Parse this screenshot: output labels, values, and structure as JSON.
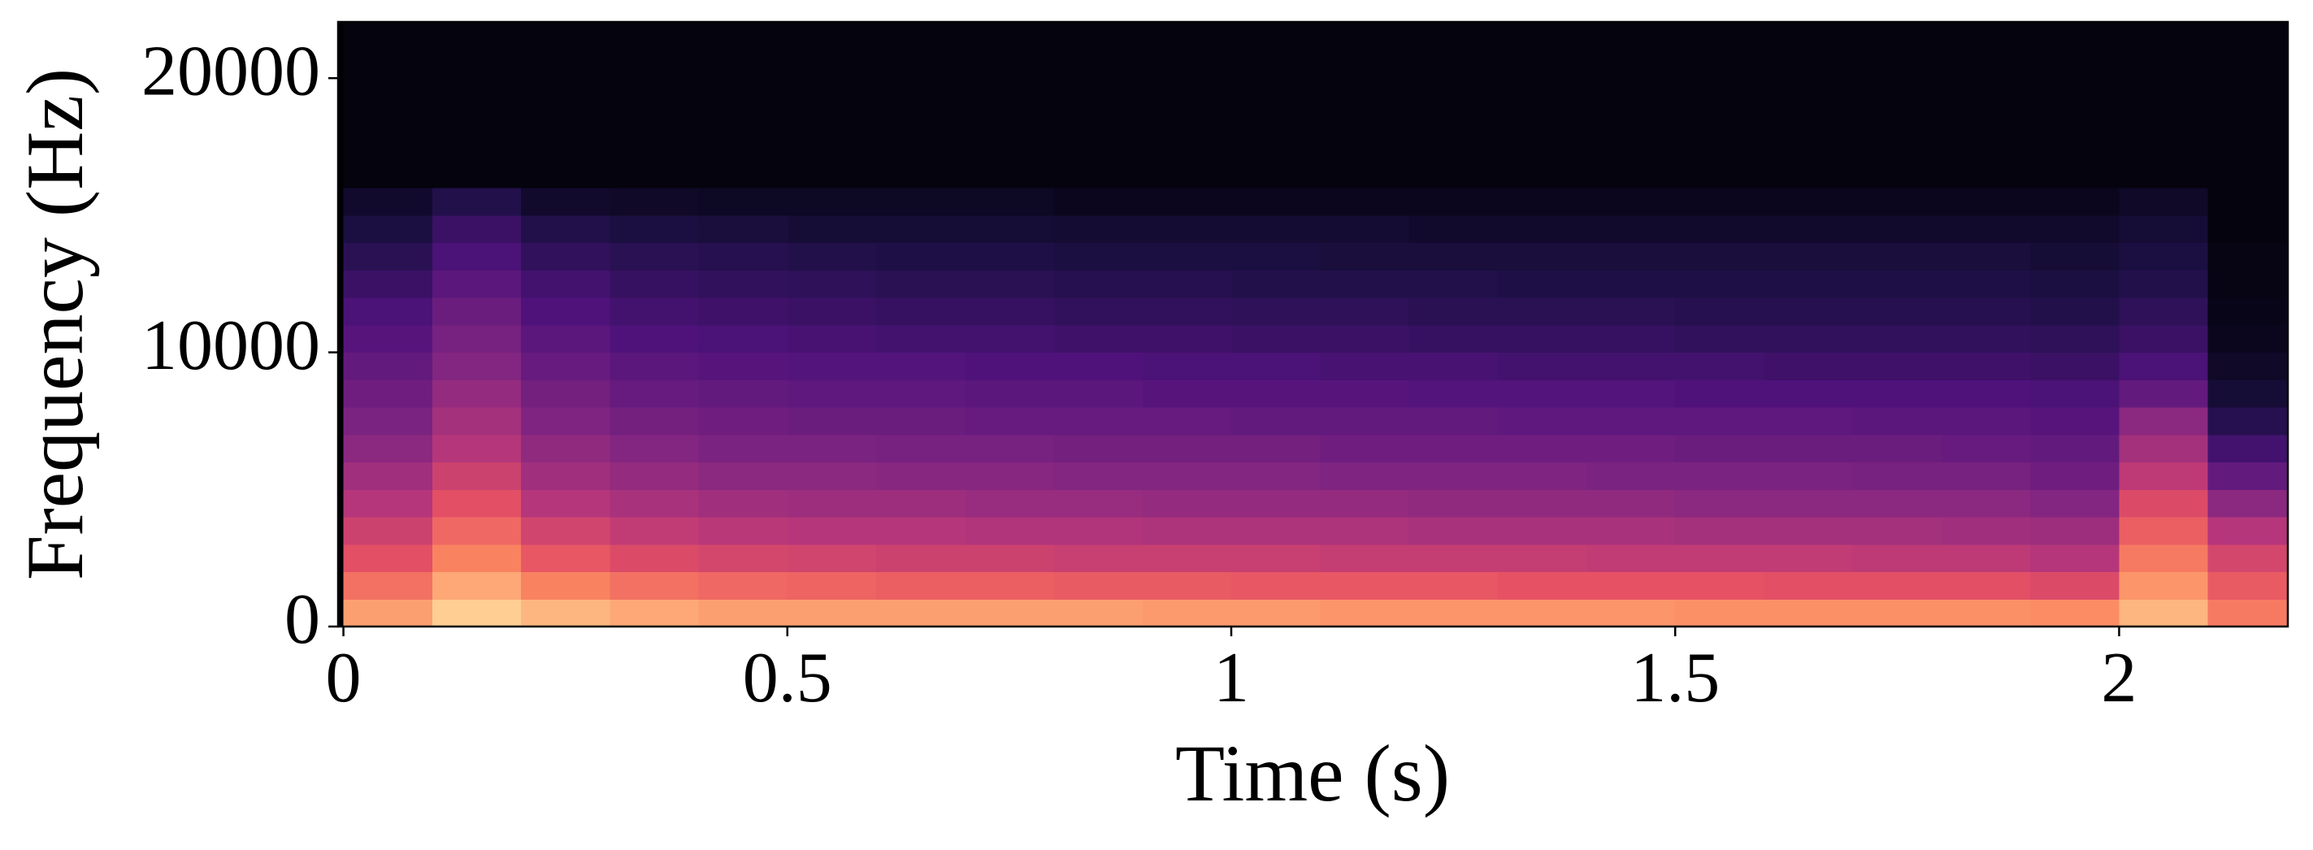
{
  "chart_data": {
    "type": "spectrogram",
    "xlabel": "Time (s)",
    "ylabel": "Frequency (Hz)",
    "xlim": [
      -0.006,
      2.19
    ],
    "ylim": [
      0,
      22050
    ],
    "xticks": [
      0,
      0.5,
      1,
      1.5,
      2
    ],
    "yticks": [
      0,
      10000,
      20000
    ],
    "x": [
      0,
      0.1,
      0.2,
      0.3,
      0.4,
      0.5,
      0.6,
      0.7,
      0.8,
      0.9,
      1.0,
      1.1,
      1.2,
      1.3,
      1.4,
      1.5,
      1.6,
      1.7,
      1.8,
      1.9,
      2.0,
      2.1,
      2.19
    ],
    "y": [
      0,
      1000,
      2000,
      3000,
      4000,
      5000,
      6000,
      7000,
      8000,
      9000,
      10000,
      11000,
      12000,
      13000,
      14000,
      15000,
      16000,
      17000,
      18000,
      19000,
      20000,
      21000,
      22050
    ],
    "colormap": [
      "#000004",
      "#1c1044",
      "#4f127b",
      "#812581",
      "#b5367a",
      "#e55064",
      "#fb8761",
      "#fec287",
      "#fcfdbf"
    ],
    "z": [
      [
        0.8,
        0.9,
        0.85,
        0.82,
        0.8,
        0.8,
        0.8,
        0.8,
        0.8,
        0.79,
        0.79,
        0.78,
        0.78,
        0.78,
        0.78,
        0.77,
        0.77,
        0.77,
        0.77,
        0.76,
        0.85,
        0.72
      ],
      [
        0.7,
        0.82,
        0.74,
        0.7,
        0.68,
        0.67,
        0.66,
        0.66,
        0.65,
        0.65,
        0.64,
        0.64,
        0.64,
        0.63,
        0.63,
        0.63,
        0.62,
        0.62,
        0.62,
        0.6,
        0.78,
        0.65
      ],
      [
        0.62,
        0.74,
        0.64,
        0.6,
        0.58,
        0.57,
        0.56,
        0.56,
        0.55,
        0.55,
        0.55,
        0.54,
        0.54,
        0.54,
        0.53,
        0.53,
        0.53,
        0.52,
        0.52,
        0.5,
        0.72,
        0.58
      ],
      [
        0.56,
        0.68,
        0.57,
        0.53,
        0.51,
        0.5,
        0.5,
        0.49,
        0.49,
        0.48,
        0.48,
        0.48,
        0.47,
        0.47,
        0.47,
        0.46,
        0.46,
        0.46,
        0.45,
        0.44,
        0.66,
        0.5
      ],
      [
        0.5,
        0.62,
        0.5,
        0.47,
        0.45,
        0.44,
        0.44,
        0.43,
        0.43,
        0.42,
        0.42,
        0.42,
        0.41,
        0.41,
        0.41,
        0.4,
        0.4,
        0.4,
        0.4,
        0.38,
        0.6,
        0.4
      ],
      [
        0.45,
        0.56,
        0.45,
        0.42,
        0.4,
        0.4,
        0.39,
        0.39,
        0.38,
        0.38,
        0.38,
        0.37,
        0.37,
        0.37,
        0.36,
        0.36,
        0.36,
        0.35,
        0.35,
        0.33,
        0.52,
        0.3
      ],
      [
        0.4,
        0.5,
        0.41,
        0.38,
        0.36,
        0.36,
        0.35,
        0.35,
        0.34,
        0.34,
        0.34,
        0.33,
        0.33,
        0.33,
        0.33,
        0.32,
        0.32,
        0.32,
        0.31,
        0.3,
        0.46,
        0.22
      ],
      [
        0.36,
        0.46,
        0.37,
        0.34,
        0.33,
        0.32,
        0.32,
        0.31,
        0.31,
        0.31,
        0.3,
        0.3,
        0.3,
        0.29,
        0.29,
        0.29,
        0.29,
        0.28,
        0.28,
        0.27,
        0.4,
        0.15
      ],
      [
        0.33,
        0.42,
        0.34,
        0.31,
        0.3,
        0.29,
        0.29,
        0.28,
        0.28,
        0.27,
        0.27,
        0.27,
        0.26,
        0.26,
        0.26,
        0.25,
        0.25,
        0.25,
        0.25,
        0.24,
        0.3,
        0.1
      ],
      [
        0.3,
        0.38,
        0.31,
        0.28,
        0.27,
        0.26,
        0.26,
        0.25,
        0.25,
        0.24,
        0.24,
        0.23,
        0.23,
        0.22,
        0.22,
        0.22,
        0.21,
        0.21,
        0.21,
        0.2,
        0.24,
        0.07
      ],
      [
        0.27,
        0.35,
        0.28,
        0.25,
        0.24,
        0.23,
        0.22,
        0.22,
        0.21,
        0.21,
        0.2,
        0.2,
        0.19,
        0.19,
        0.19,
        0.18,
        0.18,
        0.18,
        0.18,
        0.17,
        0.2,
        0.05
      ],
      [
        0.24,
        0.32,
        0.25,
        0.22,
        0.21,
        0.2,
        0.19,
        0.19,
        0.18,
        0.18,
        0.17,
        0.17,
        0.16,
        0.16,
        0.16,
        0.15,
        0.15,
        0.15,
        0.15,
        0.14,
        0.17,
        0.04
      ],
      [
        0.2,
        0.28,
        0.22,
        0.19,
        0.18,
        0.17,
        0.16,
        0.16,
        0.15,
        0.15,
        0.14,
        0.14,
        0.14,
        0.13,
        0.13,
        0.13,
        0.13,
        0.13,
        0.13,
        0.12,
        0.14,
        0.03
      ],
      [
        0.16,
        0.24,
        0.18,
        0.16,
        0.15,
        0.14,
        0.13,
        0.13,
        0.12,
        0.12,
        0.12,
        0.11,
        0.11,
        0.11,
        0.11,
        0.11,
        0.11,
        0.11,
        0.11,
        0.1,
        0.12,
        0.03
      ],
      [
        0.12,
        0.2,
        0.14,
        0.12,
        0.11,
        0.1,
        0.1,
        0.1,
        0.09,
        0.09,
        0.09,
        0.09,
        0.08,
        0.08,
        0.08,
        0.08,
        0.08,
        0.08,
        0.08,
        0.08,
        0.1,
        0.02
      ],
      [
        0.08,
        0.14,
        0.08,
        0.07,
        0.06,
        0.06,
        0.06,
        0.06,
        0.05,
        0.05,
        0.05,
        0.05,
        0.05,
        0.05,
        0.05,
        0.05,
        0.05,
        0.05,
        0.05,
        0.05,
        0.07,
        0.02
      ],
      [
        0.02,
        0.02,
        0.02,
        0.02,
        0.02,
        0.02,
        0.02,
        0.02,
        0.02,
        0.02,
        0.02,
        0.02,
        0.02,
        0.02,
        0.02,
        0.02,
        0.02,
        0.02,
        0.02,
        0.02,
        0.02,
        0.02
      ],
      [
        0.02,
        0.02,
        0.02,
        0.02,
        0.02,
        0.02,
        0.02,
        0.02,
        0.02,
        0.02,
        0.02,
        0.02,
        0.02,
        0.02,
        0.02,
        0.02,
        0.02,
        0.02,
        0.02,
        0.02,
        0.02,
        0.02
      ],
      [
        0.02,
        0.02,
        0.02,
        0.02,
        0.02,
        0.02,
        0.02,
        0.02,
        0.02,
        0.02,
        0.02,
        0.02,
        0.02,
        0.02,
        0.02,
        0.02,
        0.02,
        0.02,
        0.02,
        0.02,
        0.02,
        0.02
      ],
      [
        0.02,
        0.02,
        0.02,
        0.02,
        0.02,
        0.02,
        0.02,
        0.02,
        0.02,
        0.02,
        0.02,
        0.02,
        0.02,
        0.02,
        0.02,
        0.02,
        0.02,
        0.02,
        0.02,
        0.02,
        0.02,
        0.02
      ],
      [
        0.02,
        0.02,
        0.02,
        0.02,
        0.02,
        0.02,
        0.02,
        0.02,
        0.02,
        0.02,
        0.02,
        0.02,
        0.02,
        0.02,
        0.02,
        0.02,
        0.02,
        0.02,
        0.02,
        0.02,
        0.02,
        0.02
      ],
      [
        0.02,
        0.02,
        0.02,
        0.02,
        0.02,
        0.02,
        0.02,
        0.02,
        0.02,
        0.02,
        0.02,
        0.02,
        0.02,
        0.02,
        0.02,
        0.02,
        0.02,
        0.02,
        0.02,
        0.02,
        0.02,
        0.02
      ]
    ]
  }
}
